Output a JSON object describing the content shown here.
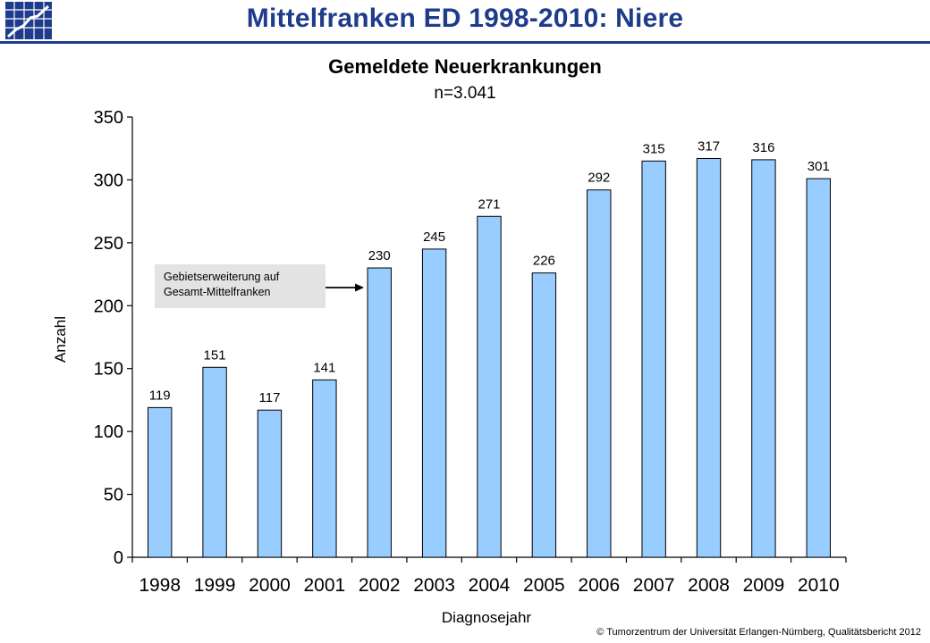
{
  "header": {
    "title": "Mittelfranken ED 1998-2010: Niere"
  },
  "logo": {
    "icon": "chart-grid-logo-icon"
  },
  "colors": {
    "header": "#1f3c8c",
    "bar": "#99ccff",
    "bar_stroke": "#000000"
  },
  "chart_data": {
    "type": "bar",
    "title": "Gemeldete Neuerkrankungen",
    "subtitle": "n=3.041",
    "xlabel": "Diagnosejahr",
    "ylabel": "Anzahl",
    "categories": [
      "1998",
      "1999",
      "2000",
      "2001",
      "2002",
      "2003",
      "2004",
      "2005",
      "2006",
      "2007",
      "2008",
      "2009",
      "2010"
    ],
    "values": [
      119,
      151,
      117,
      141,
      230,
      245,
      271,
      226,
      292,
      315,
      317,
      316,
      301
    ],
    "ylim": [
      0,
      350
    ],
    "yticks": [
      0,
      50,
      100,
      150,
      200,
      250,
      300,
      350
    ],
    "grid": false,
    "annotation": {
      "text_line1": "Gebietserweiterung auf",
      "text_line2": "Gesamt-Mittelfranken",
      "target_category": "2002"
    }
  },
  "footer": {
    "text": "© Tumorzentrum  der Universität Erlangen-Nürnberg,  Qualitätsbericht 2012"
  }
}
